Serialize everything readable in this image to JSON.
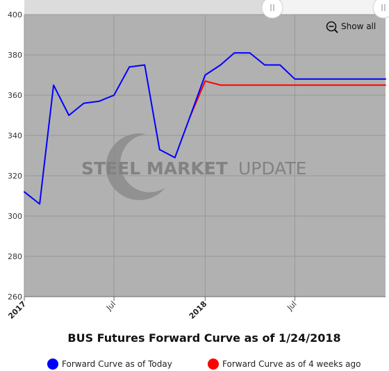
{
  "chart_data": {
    "type": "line",
    "title": "BUS Futures Forward Curve as of 1/24/2018",
    "xlabel": "",
    "ylabel": "",
    "ylim": [
      260,
      400
    ],
    "yticks": [
      260,
      280,
      300,
      320,
      340,
      360,
      380,
      400
    ],
    "x_range": [
      "2017-01-01",
      "2018-12-31"
    ],
    "x_ticks": [
      {
        "label": "2017",
        "date": "2017-01-01",
        "major": true
      },
      {
        "label": "Jul",
        "date": "2017-07-01",
        "major": false
      },
      {
        "label": "2018",
        "date": "2018-01-01",
        "major": true
      },
      {
        "label": "Jul",
        "date": "2018-07-01",
        "major": false
      }
    ],
    "grid": true,
    "legend_position": "bottom",
    "series": [
      {
        "name": "Forward Curve as of Today",
        "color": "#0000ff",
        "points": [
          {
            "x": "2017-01-01",
            "y": 312
          },
          {
            "x": "2017-02-01",
            "y": 306
          },
          {
            "x": "2017-03-01",
            "y": 365
          },
          {
            "x": "2017-04-01",
            "y": 350
          },
          {
            "x": "2017-05-01",
            "y": 356
          },
          {
            "x": "2017-06-01",
            "y": 357
          },
          {
            "x": "2017-07-01",
            "y": 360
          },
          {
            "x": "2017-08-01",
            "y": 374
          },
          {
            "x": "2017-09-01",
            "y": 375
          },
          {
            "x": "2017-10-01",
            "y": 333
          },
          {
            "x": "2017-11-01",
            "y": 329
          },
          {
            "x": "2017-12-01",
            "y": 349
          },
          {
            "x": "2018-01-01",
            "y": 370
          },
          {
            "x": "2018-02-01",
            "y": 375
          },
          {
            "x": "2018-03-01",
            "y": 381
          },
          {
            "x": "2018-04-01",
            "y": 381
          },
          {
            "x": "2018-05-01",
            "y": 375
          },
          {
            "x": "2018-06-01",
            "y": 375
          },
          {
            "x": "2018-07-01",
            "y": 368
          },
          {
            "x": "2018-08-01",
            "y": 368
          },
          {
            "x": "2018-09-01",
            "y": 368
          },
          {
            "x": "2018-10-01",
            "y": 368
          },
          {
            "x": "2018-11-01",
            "y": 368
          },
          {
            "x": "2018-12-01",
            "y": 368
          },
          {
            "x": "2018-12-31",
            "y": 368
          }
        ]
      },
      {
        "name": "Forward Curve as of 4 weeks ago",
        "color": "#ff0000",
        "points": [
          {
            "x": "2017-12-01",
            "y": 349
          },
          {
            "x": "2018-01-01",
            "y": 367
          },
          {
            "x": "2018-02-01",
            "y": 365
          },
          {
            "x": "2018-03-01",
            "y": 365
          },
          {
            "x": "2018-04-01",
            "y": 365
          },
          {
            "x": "2018-05-01",
            "y": 365
          },
          {
            "x": "2018-06-01",
            "y": 365
          },
          {
            "x": "2018-07-01",
            "y": 365
          },
          {
            "x": "2018-08-01",
            "y": 365
          },
          {
            "x": "2018-09-01",
            "y": 365
          },
          {
            "x": "2018-10-01",
            "y": 365
          },
          {
            "x": "2018-11-01",
            "y": 365
          },
          {
            "x": "2018-12-01",
            "y": 365
          },
          {
            "x": "2018-12-31",
            "y": 365
          }
        ]
      }
    ]
  },
  "controls": {
    "show_all_label": "Show all",
    "zoom_icon": "zoom-out-icon",
    "navigator_handle_icon": "grip-lines-icon"
  },
  "watermark": {
    "text_bold": "STEEL MARKET",
    "text_light": "UPDATE"
  },
  "colors": {
    "plot_background": "#b1b1b1",
    "grid": "#989898",
    "today": "#0000ff",
    "four_weeks_ago": "#ff0000"
  }
}
